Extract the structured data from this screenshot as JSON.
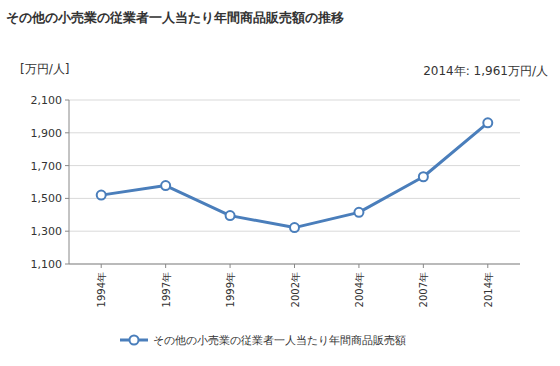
{
  "chart_data": {
    "type": "line",
    "title": "その他の小売業の従業者一人当たり年間商品販売額の推移",
    "y_label": "[万円/人]",
    "annotation": "2014年: 1,961万円/人",
    "categories": [
      "1994年",
      "1997年",
      "1999年",
      "2002年",
      "2004年",
      "2007年",
      "2014年"
    ],
    "series": [
      {
        "name": "その他の小売業の従業者一人当たり年間商品販売額",
        "color": "#4a7ebb",
        "marker": "circle",
        "values": [
          1520,
          1578,
          1395,
          1322,
          1415,
          1632,
          1961
        ]
      }
    ],
    "ylim": [
      1100,
      2100
    ],
    "yticks": [
      {
        "value": 1100,
        "label": "1,100"
      },
      {
        "value": 1300,
        "label": "1,300"
      },
      {
        "value": 1500,
        "label": "1,500"
      },
      {
        "value": 1700,
        "label": "1,700"
      },
      {
        "value": 1900,
        "label": "1,900"
      },
      {
        "value": 2100,
        "label": "2,100"
      }
    ],
    "grid": true,
    "legend": "bottom"
  }
}
